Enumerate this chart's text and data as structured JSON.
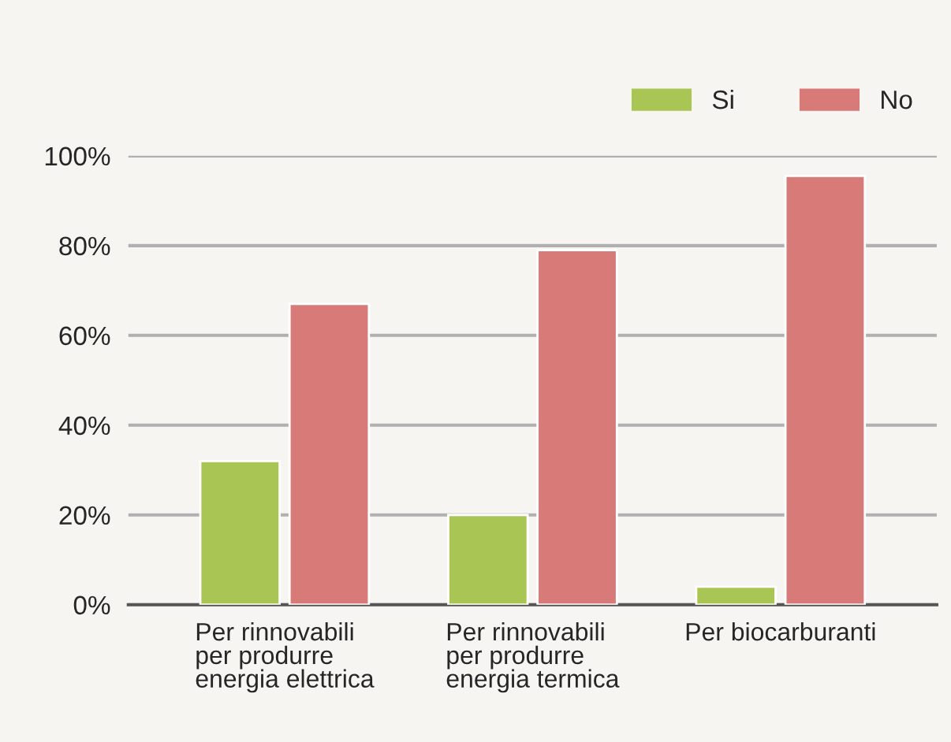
{
  "chart_data": {
    "type": "bar",
    "categories": [
      "Per rinnovabili\nper produrre\nenergia elettrica",
      "Per rinnovabili\nper produrre\nenergia termica",
      "Per biocarburanti"
    ],
    "series": [
      {
        "name": "Si",
        "color": "#a9c655",
        "values": [
          32,
          20,
          4
        ]
      },
      {
        "name": "No",
        "color": "#d77a78",
        "values": [
          67,
          79,
          95.5
        ]
      }
    ],
    "ylim": [
      0,
      100
    ],
    "yticks": [
      {
        "value": 0,
        "label": "0%"
      },
      {
        "value": 20,
        "label": "20%"
      },
      {
        "value": 40,
        "label": "40%"
      },
      {
        "value": 60,
        "label": "60%"
      },
      {
        "value": 80,
        "label": "80%"
      },
      {
        "value": 100,
        "label": "100%"
      }
    ],
    "grid": "y",
    "legend": "top right"
  }
}
